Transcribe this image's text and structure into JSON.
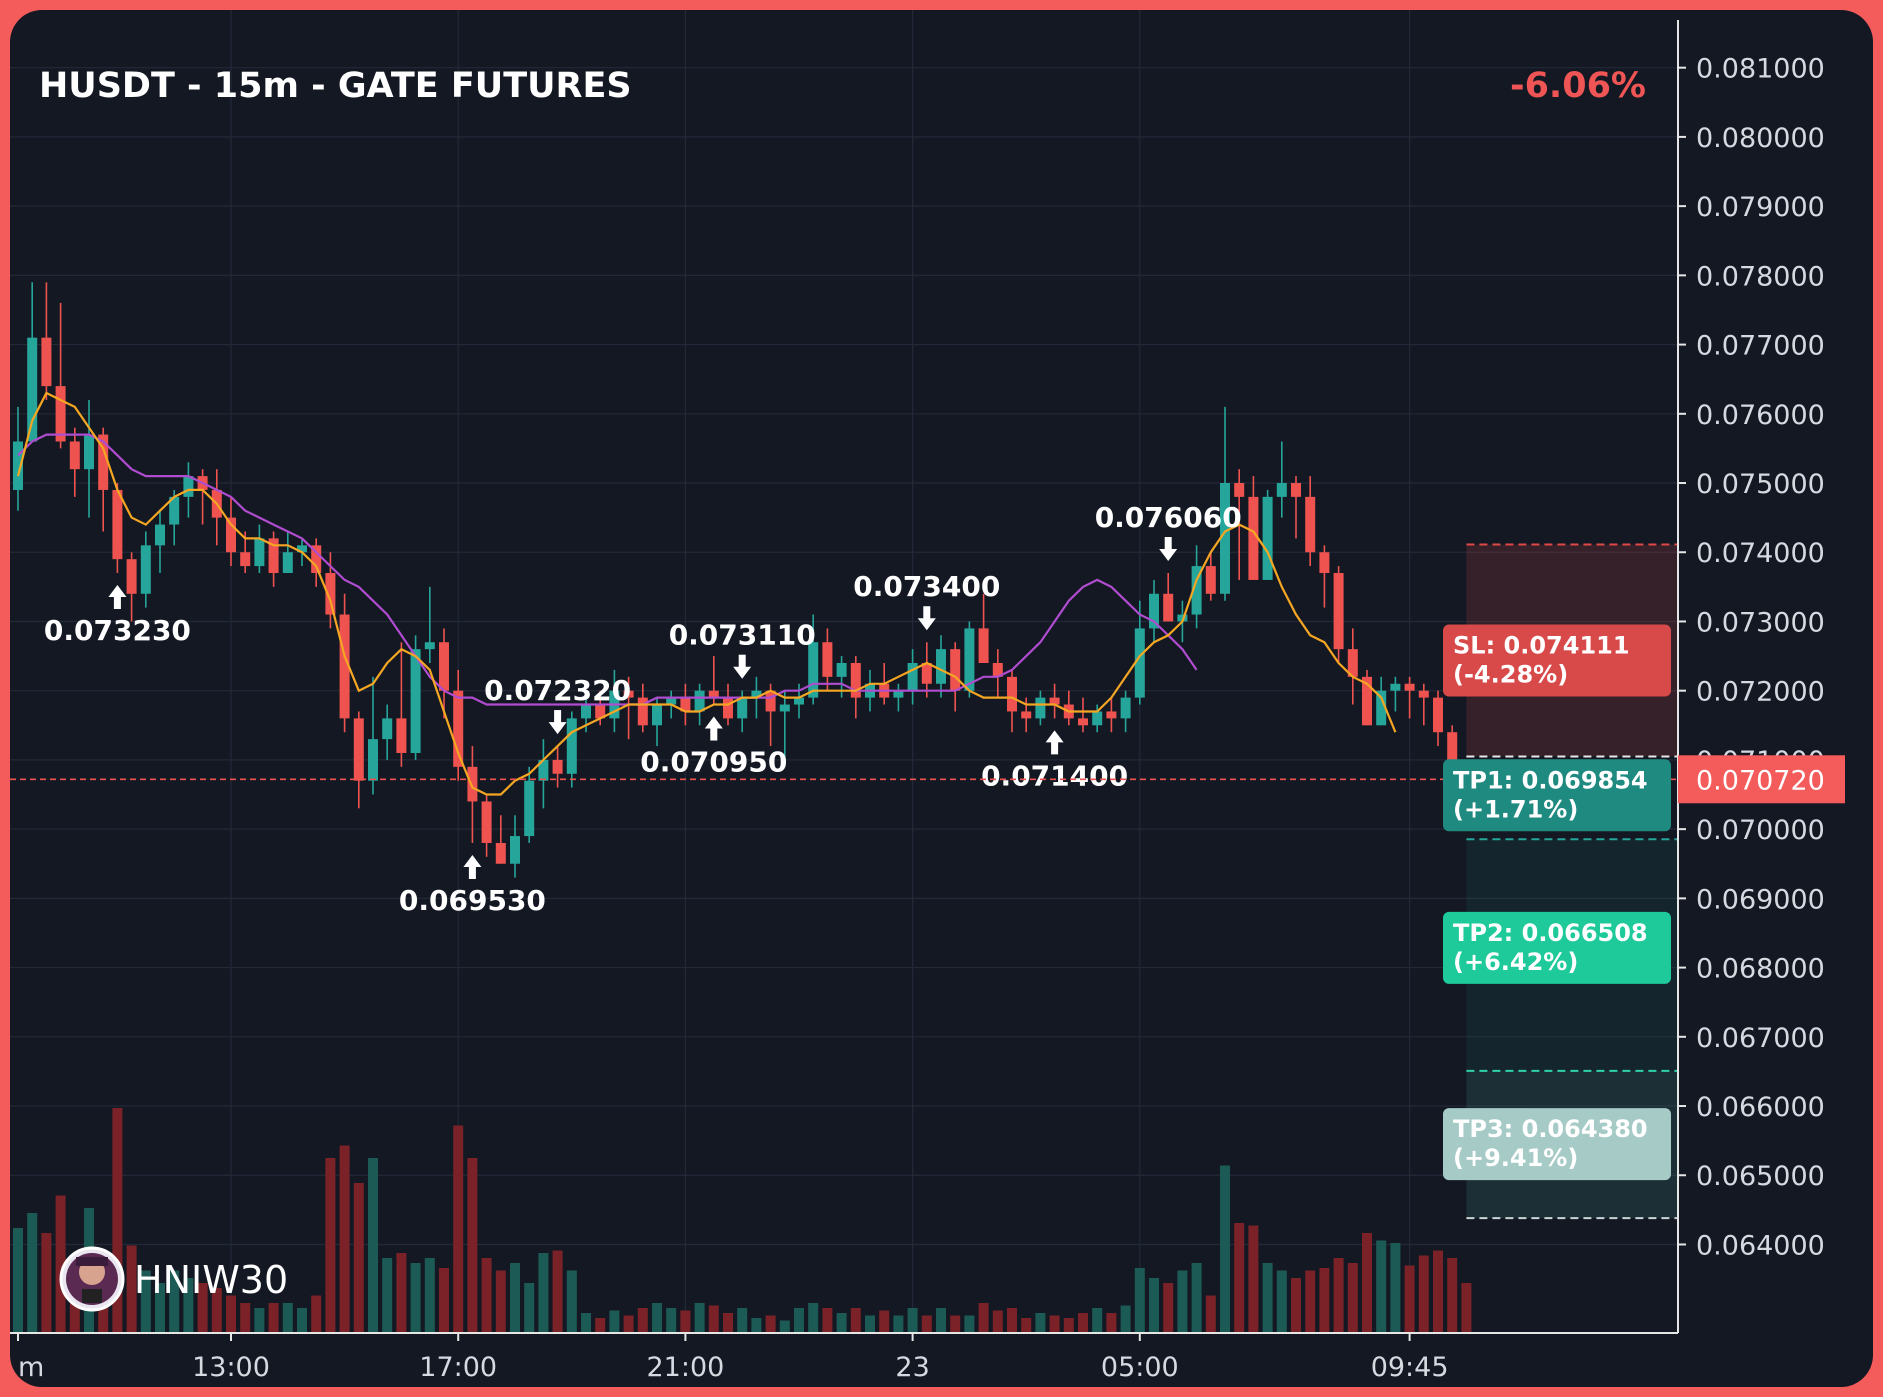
{
  "header": {
    "title": "HUSDT - 15m - GATE FUTURES",
    "change": "-6.06%"
  },
  "watermark": {
    "handle": "HNIW30"
  },
  "colors": {
    "background": "#131823",
    "up": "#26a69a",
    "down": "#ef5350",
    "ema_fast": "#f5a623",
    "ema_slow": "#b04ccf",
    "frame": "#f45b5b"
  },
  "chart_data": {
    "type": "candlestick",
    "timeframe": "15m",
    "ylim": [
      0.0634,
      0.0814
    ],
    "y_ticks": [
      "0.081000",
      "0.080000",
      "0.079000",
      "0.078000",
      "0.077000",
      "0.076000",
      "0.075000",
      "0.074000",
      "0.073000",
      "0.072000",
      "0.071000",
      "0.070000",
      "0.069000",
      "0.068000",
      "0.067000",
      "0.066000",
      "0.065000",
      "0.064000"
    ],
    "x_labels": [
      {
        "label": "m",
        "index": 0
      },
      {
        "label": "13:00",
        "index": 15
      },
      {
        "label": "17:00",
        "index": 31
      },
      {
        "label": "21:00",
        "index": 47
      },
      {
        "label": "23",
        "index": 63
      },
      {
        "label": "05:00",
        "index": 79
      },
      {
        "label": "09:45",
        "index": 98
      }
    ],
    "candles": [
      [
        0.0749,
        0.0761,
        0.0746,
        0.0756,
        0.42
      ],
      [
        0.0756,
        0.0779,
        0.0756,
        0.0771,
        0.48
      ],
      [
        0.0771,
        0.0779,
        0.0762,
        0.0764,
        0.4
      ],
      [
        0.0764,
        0.0776,
        0.0755,
        0.0756,
        0.55
      ],
      [
        0.0756,
        0.0758,
        0.0748,
        0.0752,
        0.3
      ],
      [
        0.0752,
        0.0762,
        0.0745,
        0.0757,
        0.5
      ],
      [
        0.0757,
        0.0758,
        0.0743,
        0.0749,
        0.3
      ],
      [
        0.0749,
        0.075,
        0.0737,
        0.0739,
        0.9
      ],
      [
        0.0739,
        0.074,
        0.073,
        0.0734,
        0.35
      ],
      [
        0.0734,
        0.0743,
        0.0732,
        0.0741,
        0.25
      ],
      [
        0.0741,
        0.0746,
        0.0737,
        0.0744,
        0.2
      ],
      [
        0.0744,
        0.0749,
        0.0741,
        0.0748,
        0.25
      ],
      [
        0.0748,
        0.0753,
        0.0745,
        0.0751,
        0.22
      ],
      [
        0.0751,
        0.0752,
        0.0744,
        0.0749,
        0.2
      ],
      [
        0.0749,
        0.0752,
        0.0741,
        0.0745,
        0.18
      ],
      [
        0.0745,
        0.0748,
        0.0738,
        0.074,
        0.15
      ],
      [
        0.074,
        0.0743,
        0.0737,
        0.0738,
        0.12
      ],
      [
        0.0738,
        0.0744,
        0.0737,
        0.0742,
        0.1
      ],
      [
        0.0742,
        0.0743,
        0.0735,
        0.0737,
        0.12
      ],
      [
        0.0737,
        0.0743,
        0.0737,
        0.074,
        0.12
      ],
      [
        0.074,
        0.0742,
        0.0738,
        0.0741,
        0.1
      ],
      [
        0.0741,
        0.0742,
        0.0735,
        0.0737,
        0.15
      ],
      [
        0.0737,
        0.074,
        0.0729,
        0.0731,
        0.7
      ],
      [
        0.0731,
        0.0734,
        0.0714,
        0.0716,
        0.75
      ],
      [
        0.0716,
        0.0717,
        0.0703,
        0.0707,
        0.6
      ],
      [
        0.0707,
        0.0722,
        0.0705,
        0.0713,
        0.7
      ],
      [
        0.0713,
        0.0718,
        0.071,
        0.0716,
        0.3
      ],
      [
        0.0716,
        0.0727,
        0.0709,
        0.0711,
        0.32
      ],
      [
        0.0711,
        0.0728,
        0.071,
        0.0726,
        0.28
      ],
      [
        0.0726,
        0.0735,
        0.0724,
        0.0727,
        0.3
      ],
      [
        0.0727,
        0.0729,
        0.0716,
        0.072,
        0.26
      ],
      [
        0.072,
        0.0723,
        0.0707,
        0.0709,
        0.83
      ],
      [
        0.0709,
        0.0712,
        0.0698,
        0.0704,
        0.7
      ],
      [
        0.0704,
        0.0705,
        0.0696,
        0.0698,
        0.3
      ],
      [
        0.0698,
        0.0702,
        0.0695,
        0.0695,
        0.25
      ],
      [
        0.0695,
        0.0702,
        0.0693,
        0.0699,
        0.28
      ],
      [
        0.0699,
        0.0709,
        0.0698,
        0.0707,
        0.2
      ],
      [
        0.0707,
        0.0713,
        0.0703,
        0.071,
        0.32
      ],
      [
        0.071,
        0.0712,
        0.0706,
        0.0708,
        0.33
      ],
      [
        0.0708,
        0.0717,
        0.0706,
        0.0716,
        0.25
      ],
      [
        0.0716,
        0.0719,
        0.0714,
        0.0718,
        0.08
      ],
      [
        0.0718,
        0.072,
        0.0715,
        0.0716,
        0.06
      ],
      [
        0.0716,
        0.0723,
        0.0714,
        0.072,
        0.09
      ],
      [
        0.072,
        0.0722,
        0.0713,
        0.0719,
        0.07
      ],
      [
        0.0719,
        0.0721,
        0.0714,
        0.0715,
        0.1
      ],
      [
        0.0715,
        0.0719,
        0.0712,
        0.0718,
        0.12
      ],
      [
        0.0718,
        0.072,
        0.0716,
        0.0719,
        0.1
      ],
      [
        0.0719,
        0.0721,
        0.0715,
        0.0717,
        0.09
      ],
      [
        0.0717,
        0.0721,
        0.0715,
        0.072,
        0.12
      ],
      [
        0.072,
        0.0725,
        0.0718,
        0.0719,
        0.11
      ],
      [
        0.0719,
        0.0721,
        0.0715,
        0.0716,
        0.08
      ],
      [
        0.0716,
        0.072,
        0.0714,
        0.0719,
        0.1
      ],
      [
        0.0719,
        0.0722,
        0.0716,
        0.072,
        0.06
      ],
      [
        0.072,
        0.0721,
        0.0712,
        0.0717,
        0.07
      ],
      [
        0.0717,
        0.072,
        0.0709,
        0.0718,
        0.05
      ],
      [
        0.0718,
        0.0721,
        0.0716,
        0.0719,
        0.1
      ],
      [
        0.0719,
        0.0731,
        0.0718,
        0.0727,
        0.12
      ],
      [
        0.0727,
        0.0729,
        0.072,
        0.0722,
        0.1
      ],
      [
        0.0722,
        0.0725,
        0.0719,
        0.0724,
        0.08
      ],
      [
        0.0724,
        0.0725,
        0.0716,
        0.0719,
        0.1
      ],
      [
        0.0719,
        0.0723,
        0.0717,
        0.0721,
        0.07
      ],
      [
        0.0721,
        0.0724,
        0.0718,
        0.0719,
        0.09
      ],
      [
        0.0719,
        0.0721,
        0.0717,
        0.072,
        0.07
      ],
      [
        0.072,
        0.0726,
        0.0718,
        0.0724,
        0.1
      ],
      [
        0.0724,
        0.0727,
        0.0719,
        0.0721,
        0.07
      ],
      [
        0.0721,
        0.0728,
        0.0719,
        0.0726,
        0.1
      ],
      [
        0.0726,
        0.0727,
        0.0717,
        0.072,
        0.07
      ],
      [
        0.072,
        0.073,
        0.0719,
        0.0729,
        0.07
      ],
      [
        0.0729,
        0.0734,
        0.0724,
        0.0724,
        0.12
      ],
      [
        0.0724,
        0.0726,
        0.0719,
        0.0722,
        0.09
      ],
      [
        0.0722,
        0.0723,
        0.0714,
        0.0717,
        0.1
      ],
      [
        0.0717,
        0.0719,
        0.0714,
        0.0716,
        0.06
      ],
      [
        0.0716,
        0.072,
        0.0715,
        0.0719,
        0.08
      ],
      [
        0.0719,
        0.0721,
        0.0716,
        0.0718,
        0.07
      ],
      [
        0.0718,
        0.072,
        0.0715,
        0.0716,
        0.06
      ],
      [
        0.0716,
        0.0719,
        0.0714,
        0.0715,
        0.08
      ],
      [
        0.0715,
        0.0718,
        0.0714,
        0.0717,
        0.1
      ],
      [
        0.0717,
        0.0719,
        0.0714,
        0.0716,
        0.08
      ],
      [
        0.0716,
        0.072,
        0.0714,
        0.0719,
        0.11
      ],
      [
        0.0719,
        0.0733,
        0.0718,
        0.0729,
        0.26
      ],
      [
        0.0729,
        0.0736,
        0.0727,
        0.0734,
        0.22
      ],
      [
        0.0734,
        0.0737,
        0.073,
        0.073,
        0.2
      ],
      [
        0.073,
        0.0733,
        0.0727,
        0.0731,
        0.25
      ],
      [
        0.0731,
        0.0741,
        0.0729,
        0.0738,
        0.28
      ],
      [
        0.0738,
        0.074,
        0.0733,
        0.0734,
        0.15
      ],
      [
        0.0734,
        0.0761,
        0.0733,
        0.075,
        0.67
      ],
      [
        0.075,
        0.0752,
        0.0736,
        0.0748,
        0.44
      ],
      [
        0.0748,
        0.0751,
        0.0736,
        0.0736,
        0.43
      ],
      [
        0.0736,
        0.0749,
        0.0736,
        0.0748,
        0.28
      ],
      [
        0.0748,
        0.0756,
        0.0745,
        0.075,
        0.25
      ],
      [
        0.075,
        0.0751,
        0.0742,
        0.0748,
        0.22
      ],
      [
        0.0748,
        0.0751,
        0.0738,
        0.074,
        0.25
      ],
      [
        0.074,
        0.0741,
        0.0732,
        0.0737,
        0.26
      ],
      [
        0.0737,
        0.0738,
        0.0724,
        0.0726,
        0.3
      ],
      [
        0.0726,
        0.0729,
        0.0718,
        0.0722,
        0.28
      ],
      [
        0.0722,
        0.0723,
        0.0715,
        0.0715,
        0.4
      ],
      [
        0.0715,
        0.0722,
        0.0715,
        0.072,
        0.37
      ],
      [
        0.072,
        0.0722,
        0.0717,
        0.0721,
        0.36
      ],
      [
        0.0721,
        0.0722,
        0.0716,
        0.072,
        0.27
      ],
      [
        0.072,
        0.0721,
        0.0715,
        0.0719,
        0.31
      ],
      [
        0.0719,
        0.072,
        0.0712,
        0.0714,
        0.33
      ],
      [
        0.0714,
        0.0715,
        0.0706,
        0.0708,
        0.3
      ],
      [
        0.0708,
        0.071,
        0.0706,
        0.0707,
        0.2
      ]
    ],
    "ema_fast": [
      0.0751,
      0.0759,
      0.0763,
      0.0762,
      0.0761,
      0.0758,
      0.0755,
      0.0749,
      0.0745,
      0.0744,
      0.0746,
      0.0748,
      0.0749,
      0.0749,
      0.0747,
      0.0744,
      0.0742,
      0.0742,
      0.0741,
      0.0741,
      0.074,
      0.0738,
      0.0733,
      0.0725,
      0.072,
      0.0721,
      0.0724,
      0.0726,
      0.0725,
      0.0723,
      0.0717,
      0.0711,
      0.0706,
      0.0705,
      0.0705,
      0.0707,
      0.0708,
      0.071,
      0.0712,
      0.0714,
      0.0715,
      0.0716,
      0.0717,
      0.0718,
      0.0718,
      0.0718,
      0.0718,
      0.0717,
      0.0717,
      0.0718,
      0.0718,
      0.0719,
      0.0719,
      0.072,
      0.0719,
      0.0719,
      0.072,
      0.072,
      0.072,
      0.072,
      0.0721,
      0.0721,
      0.0722,
      0.0723,
      0.0724,
      0.0723,
      0.0722,
      0.072,
      0.0719,
      0.0719,
      0.0719,
      0.0718,
      0.0718,
      0.0718,
      0.0717,
      0.0717,
      0.0717,
      0.0719,
      0.0722,
      0.0725,
      0.0727,
      0.0728,
      0.073,
      0.0736,
      0.074,
      0.0743,
      0.0744,
      0.0743,
      0.074,
      0.0735,
      0.0731,
      0.0728,
      0.0727,
      0.0724,
      0.0722,
      0.0721,
      0.0719,
      0.0714
    ],
    "ema_slow": [
      0.0754,
      0.0756,
      0.0757,
      0.0757,
      0.0757,
      0.0757,
      0.0756,
      0.0754,
      0.0752,
      0.0751,
      0.0751,
      0.0751,
      0.0751,
      0.075,
      0.0749,
      0.0748,
      0.0746,
      0.0745,
      0.0744,
      0.0743,
      0.0742,
      0.074,
      0.0738,
      0.0736,
      0.0735,
      0.0733,
      0.0731,
      0.0728,
      0.0725,
      0.0722,
      0.072,
      0.0719,
      0.0719,
      0.0718,
      0.0718,
      0.0718,
      0.0718,
      0.0718,
      0.0718,
      0.0718,
      0.0718,
      0.0718,
      0.0718,
      0.0718,
      0.0718,
      0.0719,
      0.0719,
      0.0719,
      0.0719,
      0.0719,
      0.0719,
      0.0719,
      0.0719,
      0.0719,
      0.072,
      0.072,
      0.0721,
      0.0721,
      0.0721,
      0.072,
      0.072,
      0.072,
      0.072,
      0.072,
      0.072,
      0.072,
      0.072,
      0.0721,
      0.0722,
      0.0722,
      0.0723,
      0.0725,
      0.0727,
      0.073,
      0.0733,
      0.0735,
      0.0736,
      0.0735,
      0.0733,
      0.0731,
      0.073,
      0.0728,
      0.0726,
      0.0723
    ],
    "annotations": [
      {
        "label": "0.073230",
        "index": 7,
        "price": 0.07323,
        "side": "low"
      },
      {
        "label": "0.069530",
        "index": 32,
        "price": 0.06953,
        "side": "low"
      },
      {
        "label": "0.072320",
        "index": 38,
        "price": 0.07232,
        "side": "high"
      },
      {
        "label": "0.070950",
        "index": 49,
        "price": 0.07095,
        "side": "low"
      },
      {
        "label": "0.073110",
        "index": 51,
        "price": 0.07311,
        "side": "high"
      },
      {
        "label": "0.073400",
        "index": 64,
        "price": 0.0734,
        "side": "high"
      },
      {
        "label": "0.071400",
        "index": 73,
        "price": 0.0714,
        "side": "low"
      },
      {
        "label": "0.076060",
        "index": 81,
        "price": 0.07606,
        "side": "high"
      }
    ],
    "current_price": {
      "label": "0.070720",
      "price": 0.07072
    },
    "levels": [
      {
        "name": "SL",
        "label": "SL: 0.074111",
        "pct": "(-4.28%)",
        "price": 0.074111,
        "color": "#d84a4a"
      },
      {
        "name": "TP1",
        "label": "TP1: 0.069854",
        "pct": "(+1.71%)",
        "price": 0.069854,
        "color": "#1f8a80"
      },
      {
        "name": "TP2",
        "label": "TP2: 0.066508",
        "pct": "(+6.42%)",
        "price": 0.066508,
        "color": "#1ec99a"
      },
      {
        "name": "TP3",
        "label": "TP3: 0.064380",
        "pct": "(+9.41%)",
        "price": 0.06438,
        "color": "#a6cbc7"
      }
    ]
  }
}
